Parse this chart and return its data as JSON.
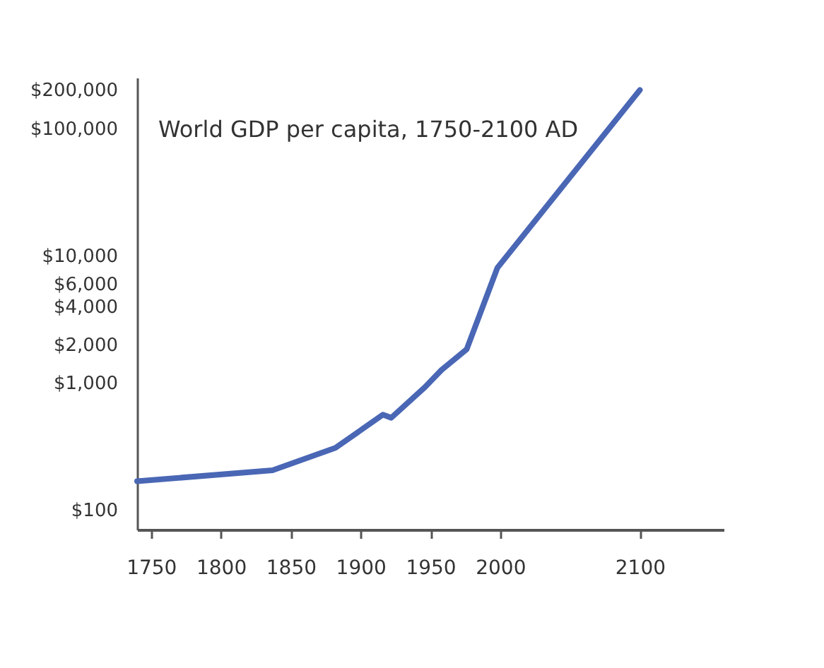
{
  "chart_data": {
    "type": "line",
    "title": "World GDP per capita, 1750-2100 AD",
    "x": [
      1740,
      1837,
      1882,
      1916,
      1922,
      1946,
      1958,
      1976,
      1998,
      2100
    ],
    "series": [
      {
        "color": "#4a67b5",
        "values": [
          168,
          205,
          307,
          560,
          530,
          920,
          1260,
          1830,
          8000,
          200000
        ]
      }
    ],
    "xlim": [
      1740,
      2160
    ],
    "xticks": [
      1750,
      1800,
      1850,
      1900,
      1950,
      2000,
      2100
    ],
    "ylim": [
      70,
      250000
    ],
    "log": "y",
    "yticks": [
      {
        "value": 100,
        "label": "$100"
      },
      {
        "value": 1000,
        "label": "$1,000"
      },
      {
        "value": 2000,
        "label": "$2,000"
      },
      {
        "value": 4000,
        "label": "$4,000"
      },
      {
        "value": 6000,
        "label": "$6,000"
      },
      {
        "value": 10000,
        "label": "$10,000"
      },
      {
        "value": 100000,
        "label": "$100,000"
      },
      {
        "value": 200000,
        "label": "$200,000"
      }
    ],
    "grid": false,
    "marker": "none",
    "line_style": "solid"
  }
}
